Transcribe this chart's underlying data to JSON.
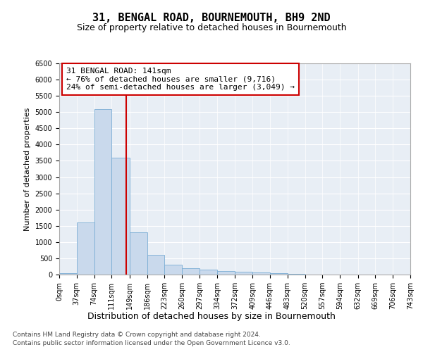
{
  "title": "31, BENGAL ROAD, BOURNEMOUTH, BH9 2ND",
  "subtitle": "Size of property relative to detached houses in Bournemouth",
  "xlabel": "Distribution of detached houses by size in Bournemouth",
  "ylabel": "Number of detached properties",
  "bar_color": "#c9d9ec",
  "bar_edge_color": "#7aadd4",
  "background_color": "#e8eef5",
  "bin_edges": [
    0,
    37,
    74,
    111,
    149,
    186,
    223,
    260,
    297,
    334,
    372,
    409,
    446,
    483,
    520,
    557,
    594,
    632,
    669,
    706,
    743
  ],
  "bar_heights": [
    50,
    1600,
    5100,
    3600,
    1300,
    600,
    300,
    200,
    150,
    100,
    80,
    60,
    50,
    30,
    0,
    0,
    0,
    0,
    0,
    0
  ],
  "property_size": 141,
  "vline_color": "#cc0000",
  "annotation_text": "31 BENGAL ROAD: 141sqm\n← 76% of detached houses are smaller (9,716)\n24% of semi-detached houses are larger (3,049) →",
  "annotation_box_color": "#ffffff",
  "annotation_box_edge_color": "#cc0000",
  "ylim": [
    0,
    6500
  ],
  "yticks": [
    0,
    500,
    1000,
    1500,
    2000,
    2500,
    3000,
    3500,
    4000,
    4500,
    5000,
    5500,
    6000,
    6500
  ],
  "footer_line1": "Contains HM Land Registry data © Crown copyright and database right 2024.",
  "footer_line2": "Contains public sector information licensed under the Open Government Licence v3.0.",
  "title_fontsize": 11,
  "subtitle_fontsize": 9,
  "xlabel_fontsize": 9,
  "ylabel_fontsize": 8,
  "tick_fontsize": 7,
  "annotation_fontsize": 8,
  "footer_fontsize": 6.5
}
